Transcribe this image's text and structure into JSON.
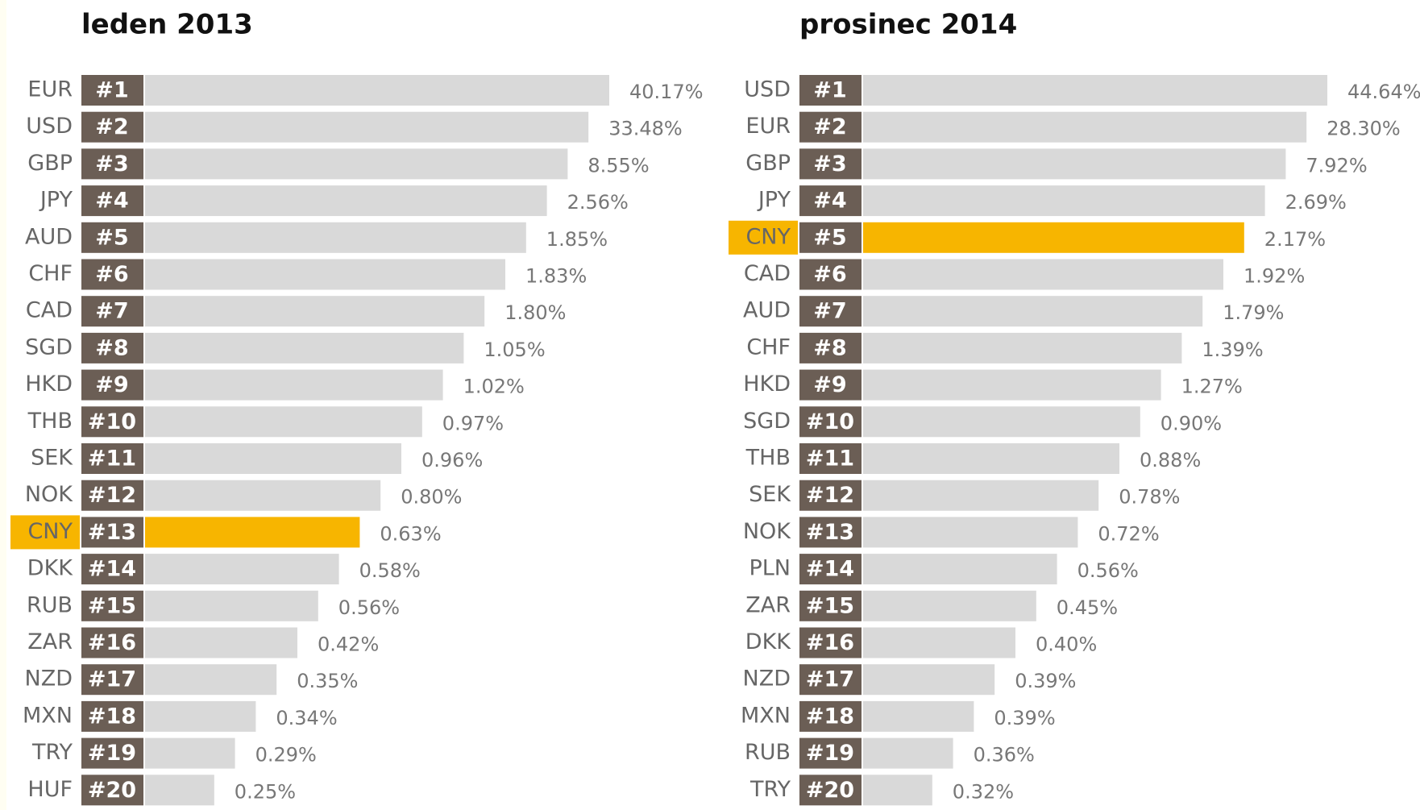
{
  "highlight_color": "#f7b500",
  "panels": [
    {
      "title": "leden 2013",
      "rows": [
        {
          "currency": "EUR",
          "rank": "#1",
          "share": "40.17%"
        },
        {
          "currency": "USD",
          "rank": "#2",
          "share": "33.48%"
        },
        {
          "currency": "GBP",
          "rank": "#3",
          "share": "8.55%"
        },
        {
          "currency": "JPY",
          "rank": "#4",
          "share": "2.56%"
        },
        {
          "currency": "AUD",
          "rank": "#5",
          "share": "1.85%"
        },
        {
          "currency": "CHF",
          "rank": "#6",
          "share": "1.83%"
        },
        {
          "currency": "CAD",
          "rank": "#7",
          "share": "1.80%"
        },
        {
          "currency": "SGD",
          "rank": "#8",
          "share": "1.05%"
        },
        {
          "currency": "HKD",
          "rank": "#9",
          "share": "1.02%"
        },
        {
          "currency": "THB",
          "rank": "#10",
          "share": "0.97%"
        },
        {
          "currency": "SEK",
          "rank": "#11",
          "share": "0.96%"
        },
        {
          "currency": "NOK",
          "rank": "#12",
          "share": "0.80%"
        },
        {
          "currency": "CNY",
          "rank": "#13",
          "share": "0.63%",
          "highlight": true
        },
        {
          "currency": "DKK",
          "rank": "#14",
          "share": "0.58%"
        },
        {
          "currency": "RUB",
          "rank": "#15",
          "share": "0.56%"
        },
        {
          "currency": "ZAR",
          "rank": "#16",
          "share": "0.42%"
        },
        {
          "currency": "NZD",
          "rank": "#17",
          "share": "0.35%"
        },
        {
          "currency": "MXN",
          "rank": "#18",
          "share": "0.34%"
        },
        {
          "currency": "TRY",
          "rank": "#19",
          "share": "0.29%"
        },
        {
          "currency": "HUF",
          "rank": "#20",
          "share": "0.25%"
        }
      ]
    },
    {
      "title": "prosinec 2014",
      "rows": [
        {
          "currency": "USD",
          "rank": "#1",
          "share": "44.64%"
        },
        {
          "currency": "EUR",
          "rank": "#2",
          "share": "28.30%"
        },
        {
          "currency": "GBP",
          "rank": "#3",
          "share": "7.92%"
        },
        {
          "currency": "JPY",
          "rank": "#4",
          "share": "2.69%"
        },
        {
          "currency": "CNY",
          "rank": "#5",
          "share": "2.17%",
          "highlight": true
        },
        {
          "currency": "CAD",
          "rank": "#6",
          "share": "1.92%"
        },
        {
          "currency": "AUD",
          "rank": "#7",
          "share": "1.79%"
        },
        {
          "currency": "CHF",
          "rank": "#8",
          "share": "1.39%"
        },
        {
          "currency": "HKD",
          "rank": "#9",
          "share": "1.27%"
        },
        {
          "currency": "SGD",
          "rank": "#10",
          "share": "0.90%"
        },
        {
          "currency": "THB",
          "rank": "#11",
          "share": "0.88%"
        },
        {
          "currency": "SEK",
          "rank": "#12",
          "share": "0.78%"
        },
        {
          "currency": "NOK",
          "rank": "#13",
          "share": "0.72%"
        },
        {
          "currency": "PLN",
          "rank": "#14",
          "share": "0.56%"
        },
        {
          "currency": "ZAR",
          "rank": "#15",
          "share": "0.45%"
        },
        {
          "currency": "DKK",
          "rank": "#16",
          "share": "0.40%"
        },
        {
          "currency": "NZD",
          "rank": "#17",
          "share": "0.39%"
        },
        {
          "currency": "MXN",
          "rank": "#18",
          "share": "0.39%"
        },
        {
          "currency": "RUB",
          "rank": "#19",
          "share": "0.36%"
        },
        {
          "currency": "TRY",
          "rank": "#20",
          "share": "0.32%"
        }
      ]
    }
  ]
}
